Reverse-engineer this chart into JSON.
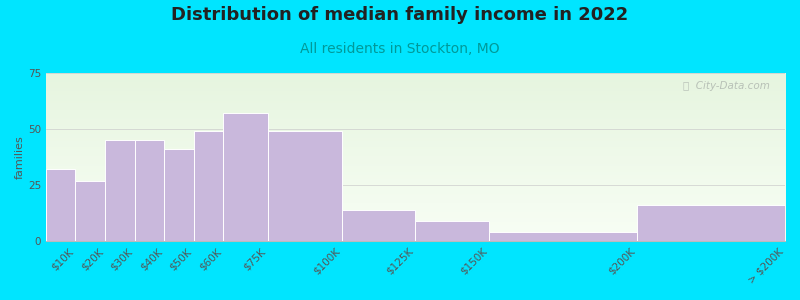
{
  "title": "Distribution of median family income in 2022",
  "subtitle": "All residents in Stockton, MO",
  "ylabel": "families",
  "categories": [
    "$10K",
    "$20K",
    "$30K",
    "$40K",
    "$50K",
    "$60K",
    "$75K",
    "$100K",
    "$125K",
    "$150K",
    "$200K",
    "> $200K"
  ],
  "values": [
    32,
    27,
    45,
    45,
    41,
    49,
    57,
    49,
    14,
    9,
    4,
    16
  ],
  "bin_edges": [
    0,
    10,
    20,
    30,
    40,
    50,
    60,
    75,
    100,
    125,
    150,
    200,
    250
  ],
  "bar_color": "#c9b8dc",
  "bar_edgecolor": "#ffffff",
  "background_color": "#00e5ff",
  "plot_bg_colors": [
    "#e6f5df",
    "#f8fef5"
  ],
  "ylim": [
    0,
    75
  ],
  "yticks": [
    0,
    25,
    50,
    75
  ],
  "title_fontsize": 13,
  "subtitle_fontsize": 10,
  "ylabel_fontsize": 8,
  "tick_fontsize": 7.5,
  "watermark": "ⓘ  City-Data.com"
}
